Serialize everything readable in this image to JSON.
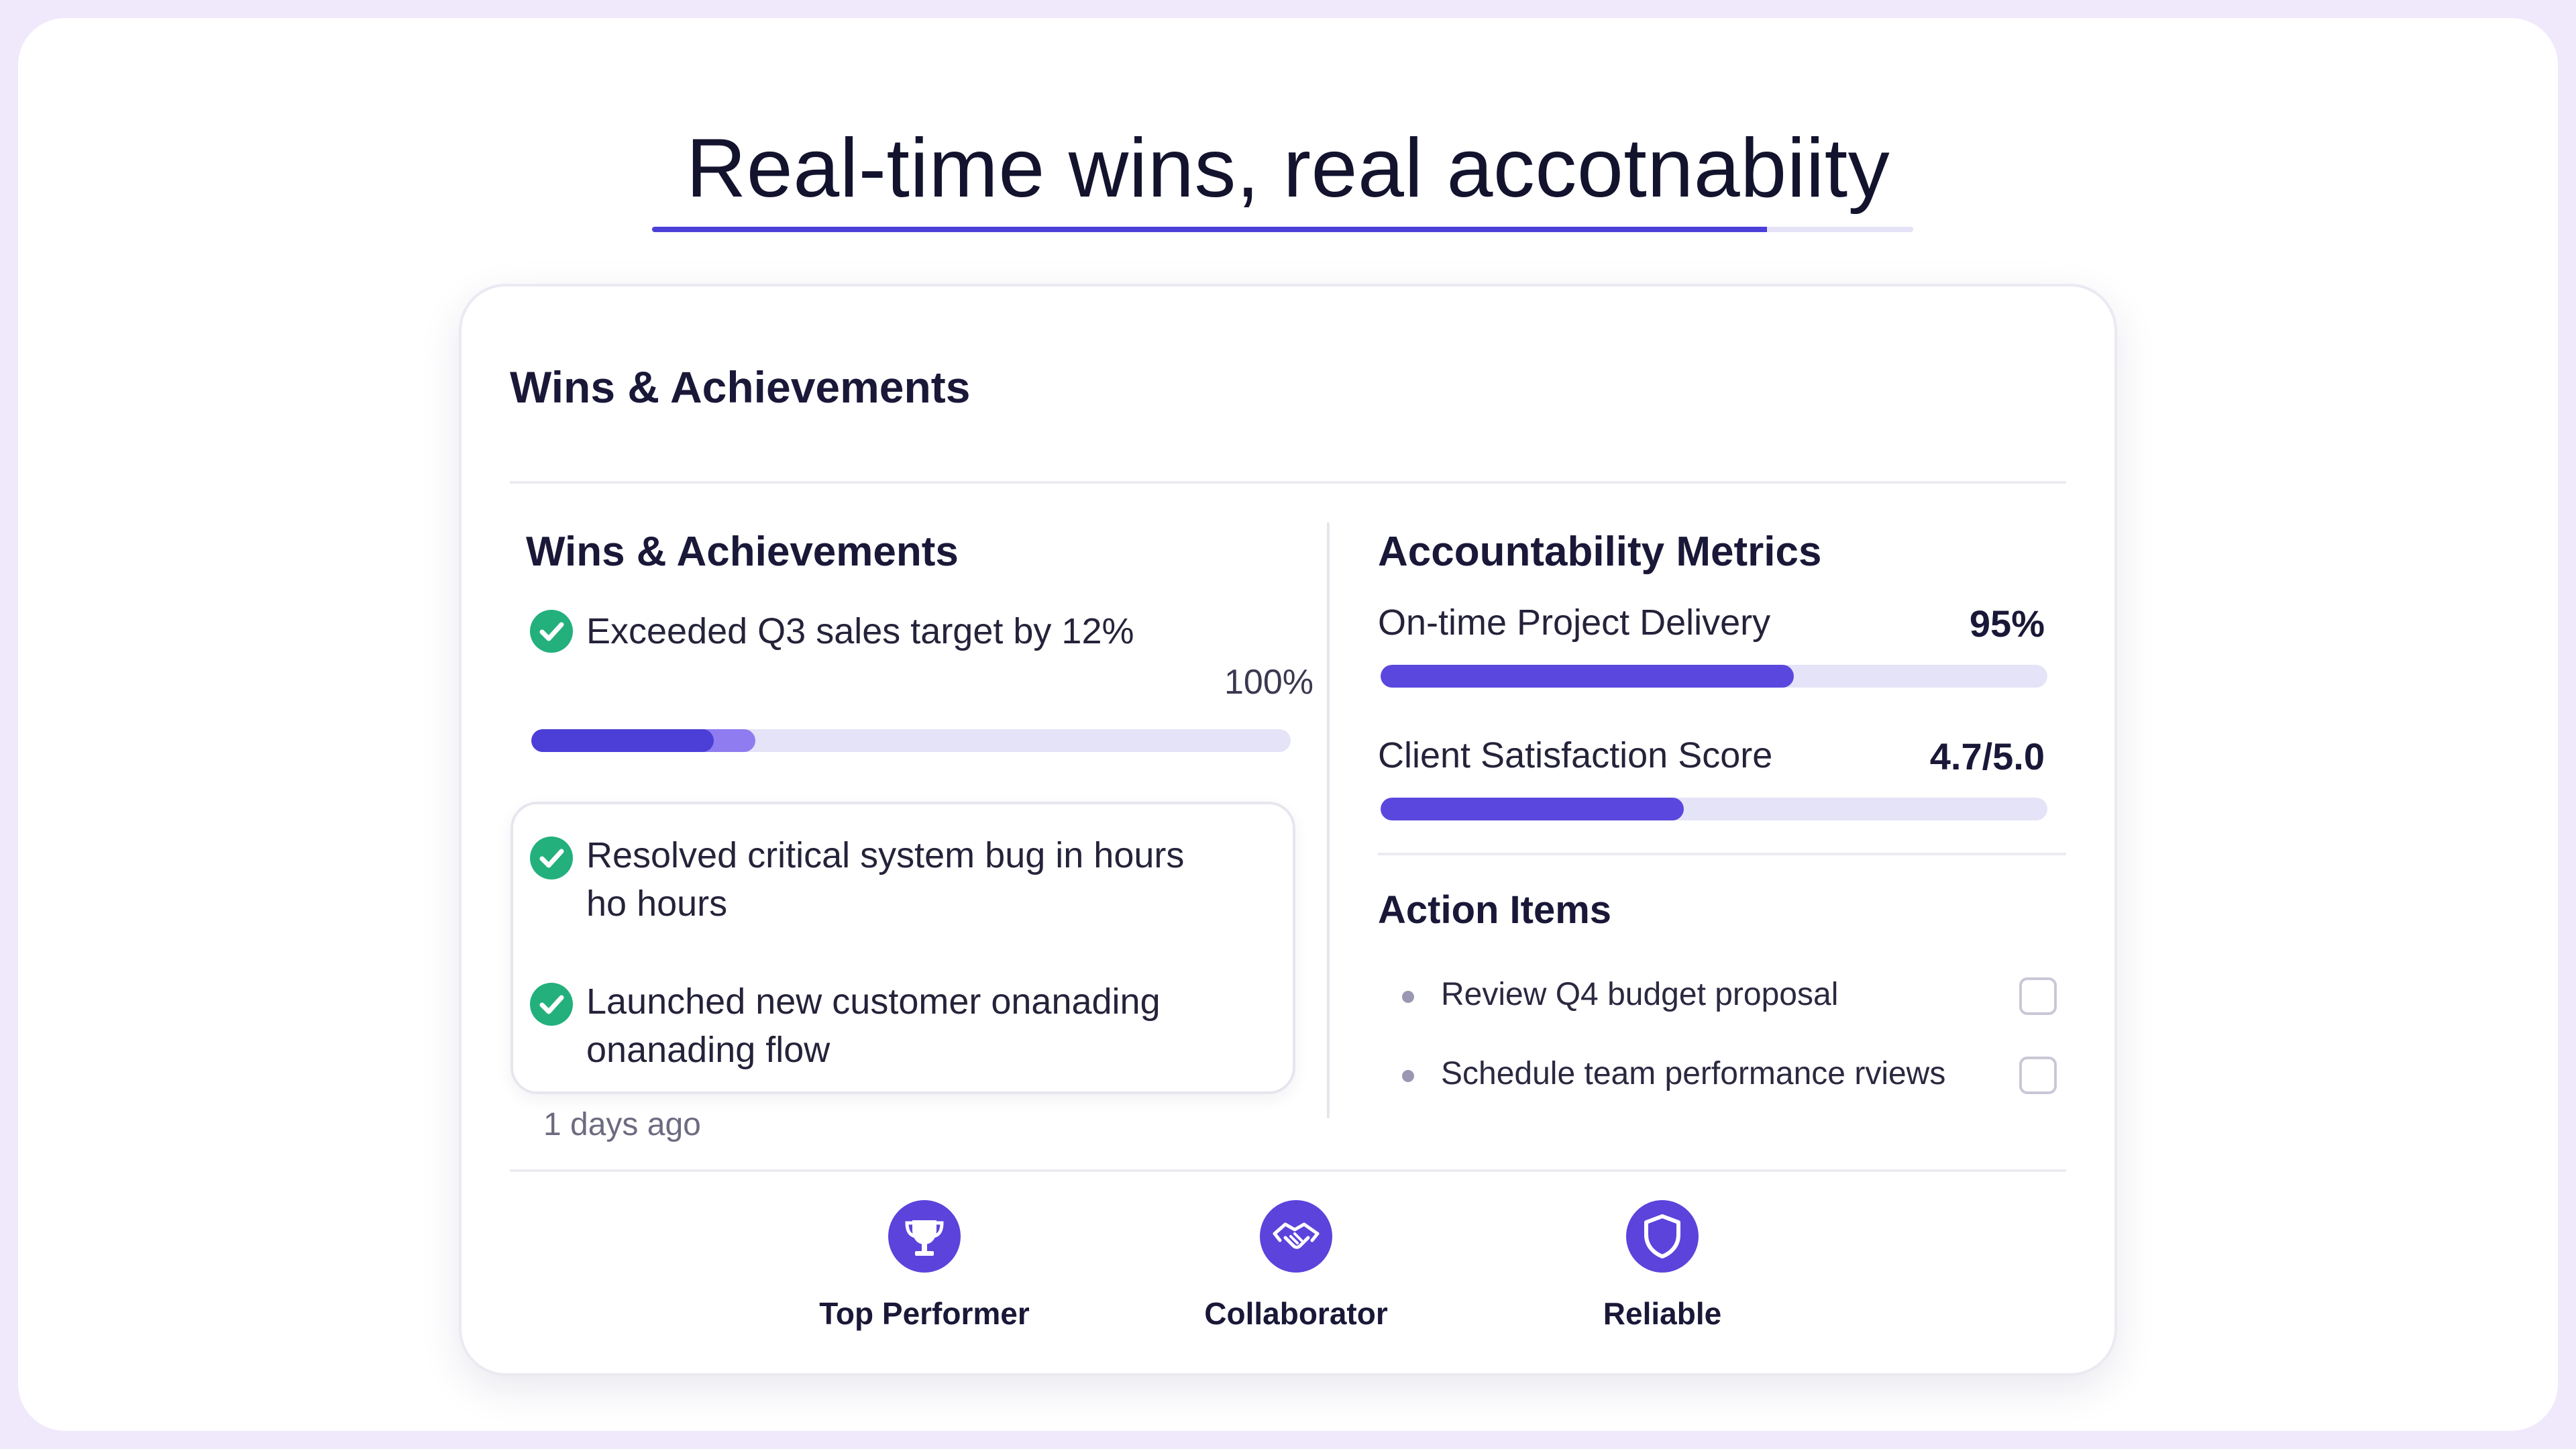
{
  "headline": "Real-time wins, real accotnabiity",
  "card": {
    "title": "Wins & Achievements"
  },
  "wins": {
    "title": "Wins & Achievements",
    "items": [
      {
        "text": "Exceeded Q3 sales target by 12%",
        "icon": "check-circle-icon"
      },
      {
        "text_line1": "Resolved critical system bug in hours",
        "text_line2": "ho hours",
        "icon": "check-circle-icon"
      },
      {
        "text_line1": "Launched new customer onanading",
        "text_line2": "onanading flow",
        "icon": "check-circle-icon"
      }
    ],
    "progress_label": "100%",
    "progress": {
      "primary_fraction": 0.24,
      "secondary_fraction": 0.295
    },
    "timestamp": "1 days ago"
  },
  "metrics": {
    "title": "Accountability Metrics",
    "items": [
      {
        "label": "On-time Project Delivery",
        "value": "95%",
        "fill_fraction": 0.62
      },
      {
        "label": "Client Satisfaction Score",
        "value": "4.7/5.0",
        "fill_fraction": 0.455
      }
    ]
  },
  "actions": {
    "title": "Action Items",
    "items": [
      {
        "text": "Review Q4 budget proposal",
        "checked": false
      },
      {
        "text": "Schedule team performance rviews",
        "checked": false
      }
    ]
  },
  "badges": [
    {
      "label": "Top Performer",
      "icon": "trophy-icon"
    },
    {
      "label": "Collaborator",
      "icon": "handshake-icon"
    },
    {
      "label": "Reliable",
      "icon": "shield-icon"
    }
  ],
  "colors": {
    "accent": "#4b3fd8",
    "accent_light": "#8f7cf0",
    "success": "#23b07d",
    "badge": "#5b43dc",
    "track": "#e5e3f7"
  }
}
